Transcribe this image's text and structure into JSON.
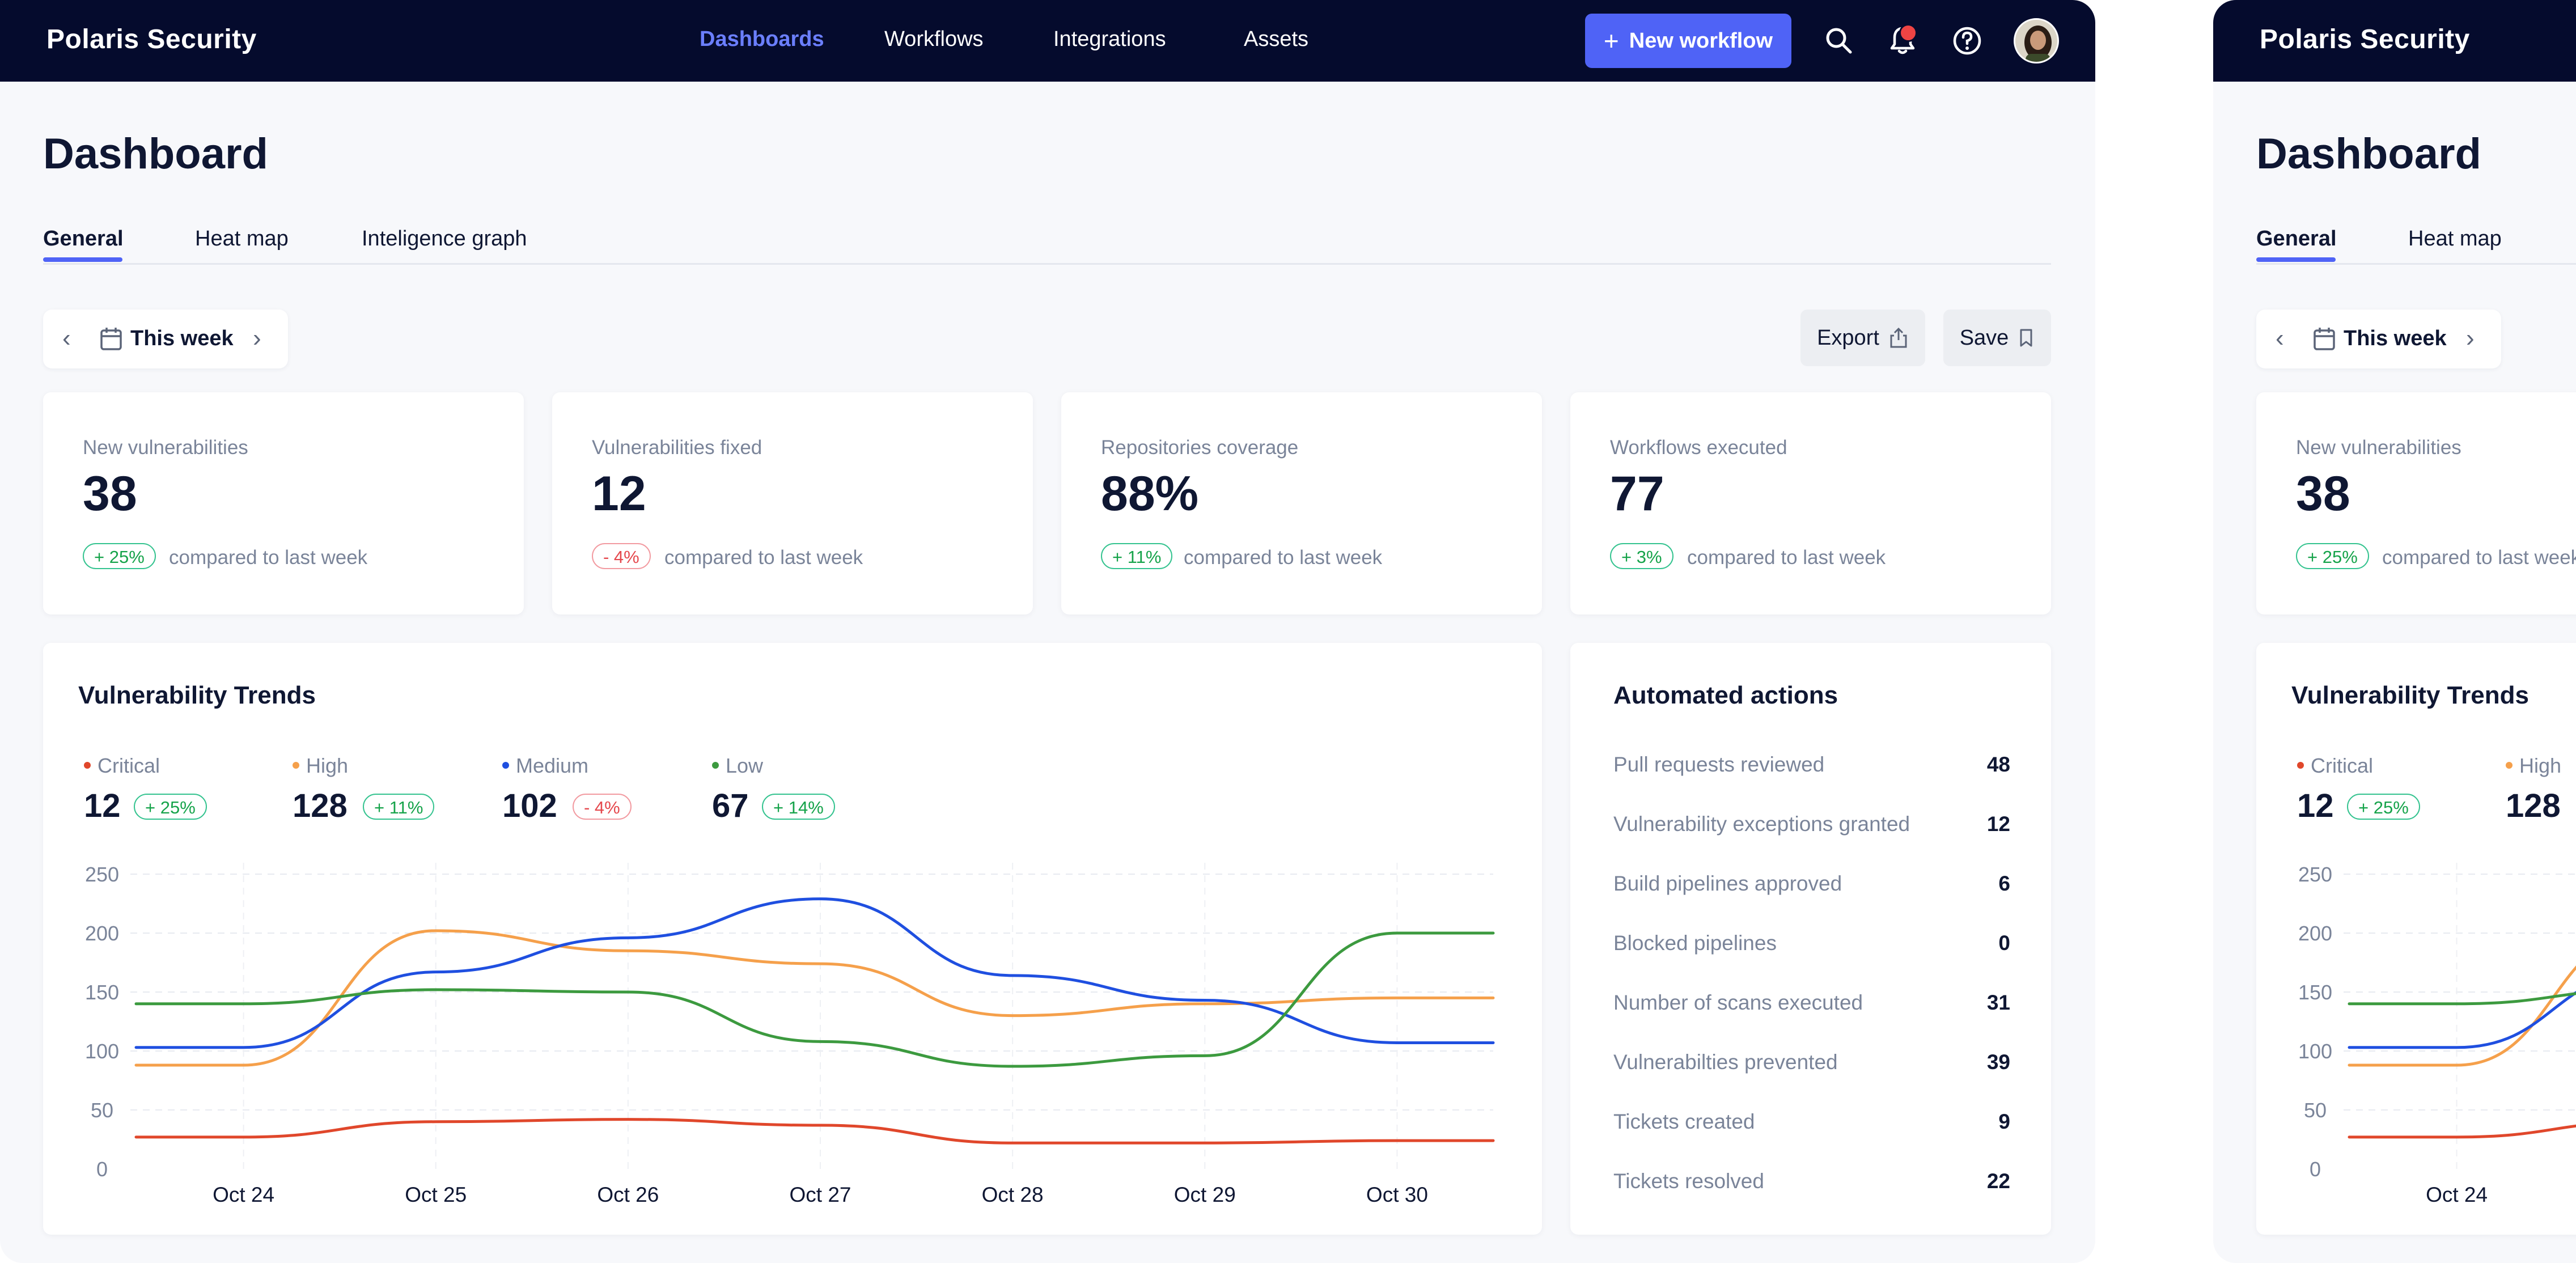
{
  "app": {
    "brand": "Polaris Security",
    "nav": [
      "Dashboards",
      "Workflows",
      "Integrations",
      "Assets"
    ],
    "active_nav": "Dashboards",
    "new_button_label": "New workflow",
    "notification_badge": "1"
  },
  "page": {
    "title": "Dashboard",
    "tabs": [
      "General",
      "Heat map",
      "Inteligence graph"
    ],
    "active_tab": "General",
    "period": "This week",
    "export_label": "Export",
    "save_label": "Save"
  },
  "stats": [
    {
      "label": "New vulnerabilities",
      "value": "38",
      "change": "+ 25%",
      "trend": "positive",
      "note": "compared to last week"
    },
    {
      "label": "Vulnerabilities fixed",
      "value": "12",
      "change": "- 4%",
      "trend": "negative",
      "note": "compared to last week"
    },
    {
      "label": "Repositories coverage",
      "value": "88%",
      "change": "+ 11%",
      "trend": "positive",
      "note": "compared to last week"
    },
    {
      "label": "Workflows executed",
      "value": "77",
      "change": "+ 3%",
      "trend": "positive",
      "note": "compared to last week"
    }
  ],
  "trends": {
    "title": "Vulnerability Trends",
    "severities": [
      {
        "name": "Critical",
        "value": "12",
        "change": "+ 25%",
        "trend": "positive",
        "color": "#e0472b"
      },
      {
        "name": "High",
        "value": "128",
        "change": "+ 11%",
        "trend": "positive",
        "color": "#f5a04b"
      },
      {
        "name": "Medium",
        "value": "102",
        "change": "- 4%",
        "trend": "negative",
        "color": "#1f4fe0"
      },
      {
        "name": "Low",
        "value": "67",
        "change": "+ 14%",
        "trend": "positive",
        "color": "#3c9a3f"
      }
    ]
  },
  "chart_data": {
    "type": "line",
    "x": [
      "Oct 24",
      "Oct 25",
      "Oct 26",
      "Oct 27",
      "Oct 28",
      "Oct 29",
      "Oct 30"
    ],
    "y_ticks": [
      "0",
      "50",
      "100",
      "150",
      "200",
      "250"
    ],
    "ylim": [
      0,
      250
    ],
    "grid": true,
    "series": [
      {
        "name": "Critical",
        "color": "#e0472b",
        "values": [
          27,
          40,
          42,
          37,
          22,
          22,
          24
        ]
      },
      {
        "name": "High",
        "color": "#f5a04b",
        "values": [
          88,
          202,
          185,
          174,
          130,
          140,
          145
        ]
      },
      {
        "name": "Medium",
        "color": "#1f4fe0",
        "values": [
          103,
          167,
          196,
          229,
          164,
          143,
          107
        ]
      },
      {
        "name": "Low",
        "color": "#3c9a3f",
        "values": [
          140,
          152,
          150,
          108,
          87,
          96,
          200
        ]
      }
    ]
  },
  "actions": {
    "title": "Automated actions",
    "rows": [
      {
        "label": "Pull requests reviewed",
        "value": "48"
      },
      {
        "label": "Vulnerability exceptions granted",
        "value": "12"
      },
      {
        "label": "Build pipelines approved",
        "value": "6"
      },
      {
        "label": "Blocked pipelines",
        "value": "0"
      },
      {
        "label": "Number of scans executed",
        "value": "31"
      },
      {
        "label": "Vulnerabilties prevented",
        "value": "39"
      },
      {
        "label": "Tickets created",
        "value": "9"
      },
      {
        "label": "Tickets resolved",
        "value": "22"
      }
    ]
  }
}
